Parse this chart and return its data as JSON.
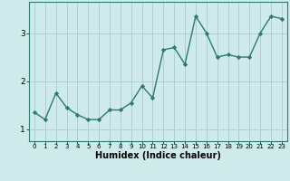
{
  "x": [
    0,
    1,
    2,
    3,
    4,
    5,
    6,
    7,
    8,
    9,
    10,
    11,
    12,
    13,
    14,
    15,
    16,
    17,
    18,
    19,
    20,
    21,
    22,
    23
  ],
  "y": [
    1.35,
    1.2,
    1.75,
    1.45,
    1.3,
    1.2,
    1.2,
    1.4,
    1.4,
    1.55,
    1.9,
    1.65,
    2.65,
    2.7,
    2.35,
    3.35,
    3.0,
    2.5,
    2.55,
    2.5,
    2.5,
    3.0,
    3.35,
    3.3
  ],
  "line_color": "#2d7a6e",
  "marker": "D",
  "marker_size": 2.2,
  "line_width": 1.0,
  "bg_color": "#ceeaea",
  "grid_color": "#b0d0d0",
  "xlabel": "Humidex (Indice chaleur)",
  "ylabel": "",
  "title": "",
  "xlim": [
    -0.5,
    23.5
  ],
  "ylim": [
    0.75,
    3.65
  ],
  "yticks": [
    1,
    2,
    3
  ],
  "xticks": [
    0,
    1,
    2,
    3,
    4,
    5,
    6,
    7,
    8,
    9,
    10,
    11,
    12,
    13,
    14,
    15,
    16,
    17,
    18,
    19,
    20,
    21,
    22,
    23
  ],
  "xlabel_fontsize": 7,
  "xtick_fontsize": 5.0,
  "ytick_fontsize": 6.5
}
